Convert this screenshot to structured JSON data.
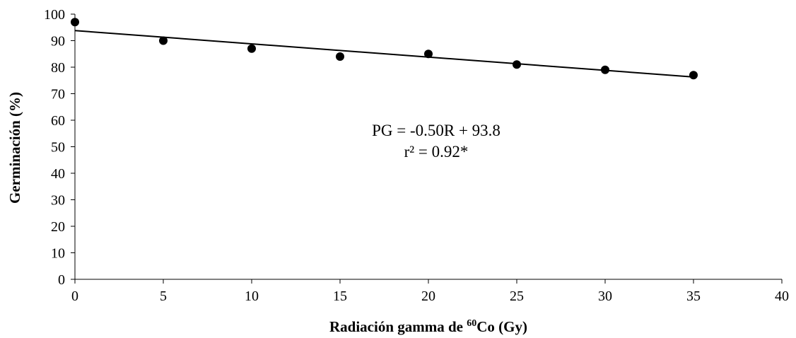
{
  "chart_data": {
    "type": "scatter",
    "xlabel_prefix": "Radiación gamma de ",
    "xlabel_sup": "60",
    "xlabel_suffix": "Co (Gy)",
    "ylabel": "Germinación (%)",
    "xlim": [
      0,
      40
    ],
    "ylim": [
      0,
      100
    ],
    "x_ticks": [
      "0",
      "5",
      "10",
      "15",
      "20",
      "25",
      "30",
      "35",
      "40"
    ],
    "y_ticks": [
      "0",
      "10",
      "20",
      "30",
      "40",
      "50",
      "60",
      "70",
      "80",
      "90",
      "100"
    ],
    "grid": false,
    "legend": "none",
    "series": [
      {
        "x": [
          0,
          5,
          10,
          15,
          20,
          25,
          30,
          35
        ],
        "y": [
          97,
          90,
          87,
          84,
          85,
          81,
          79,
          77
        ],
        "color": "#000000"
      }
    ],
    "trendline": {
      "slope": -0.5,
      "intercept": 93.8,
      "x_range": [
        0,
        35
      ],
      "color": "#000000"
    },
    "annotations": {
      "equation": "PG = -0.50R + 93.8",
      "r2": "r² = 0.92*"
    }
  }
}
